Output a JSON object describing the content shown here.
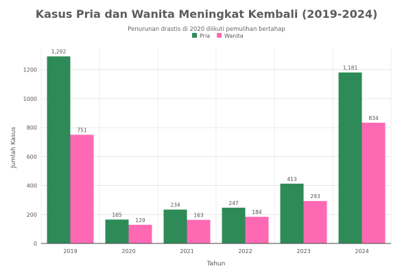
{
  "chart_data": {
    "type": "bar",
    "title": "Kasus Pria dan Wanita Meningkat Kembali (2019-2024)",
    "subtitle": "Penurunan drastis di 2020 diikuti pemulihan bertahap",
    "xlabel": "Tahun",
    "ylabel": "Jumlah Kasus",
    "categories": [
      "2019",
      "2020",
      "2021",
      "2022",
      "2023",
      "2024"
    ],
    "series": [
      {
        "name": "Pria",
        "color": "#2e8b57",
        "values": [
          1292,
          165,
          234,
          247,
          413,
          1181
        ],
        "labels": [
          "1,292",
          "165",
          "234",
          "247",
          "413",
          "1,181"
        ]
      },
      {
        "name": "Wanita",
        "color": "#ff69b4",
        "values": [
          751,
          129,
          163,
          184,
          293,
          834
        ],
        "labels": [
          "751",
          "129",
          "163",
          "184",
          "293",
          "834"
        ]
      }
    ],
    "ylim": [
      0,
      1350
    ],
    "yticks": [
      0,
      200,
      400,
      600,
      800,
      1000,
      1200
    ],
    "grid": true,
    "legend_position": "top-center"
  }
}
